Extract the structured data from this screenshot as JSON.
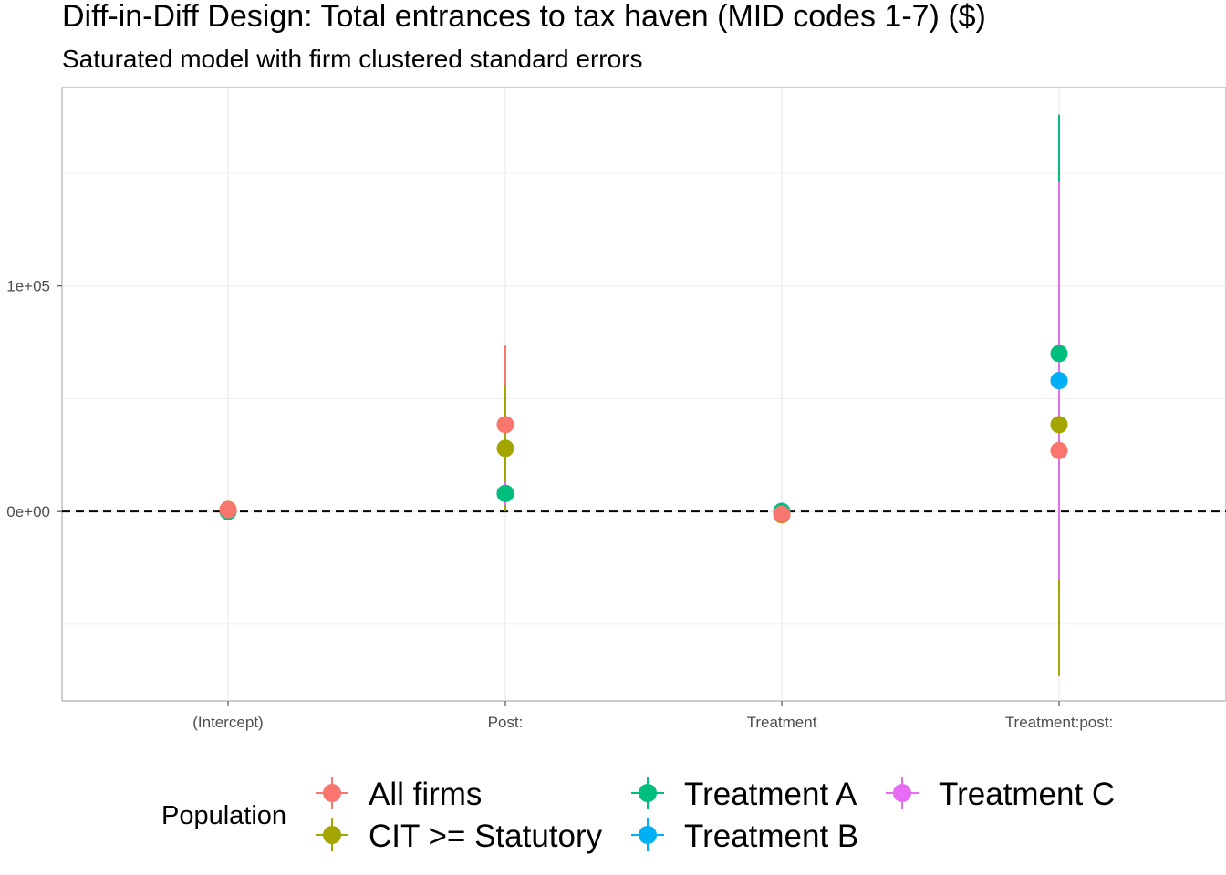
{
  "chart_data": {
    "type": "scatter",
    "title": "Diff-in-Diff Design: Total entrances to tax haven (MID codes 1-7)  ($)",
    "subtitle": "Saturated model with firm clustered standard errors",
    "xlabel": "",
    "ylabel": "",
    "categories": [
      "(Intercept)",
      "Post:",
      "Treatment",
      "Treatment:post:"
    ],
    "y_ticks": [
      0,
      100000
    ],
    "y_tick_labels": [
      "0e+00",
      "1e+05"
    ],
    "ylim": [
      -84000,
      188000
    ],
    "grid": true,
    "reference_line": {
      "y": 0,
      "style": "dashed"
    },
    "legend": {
      "title": "Population",
      "placement": "bottom"
    },
    "series": [
      {
        "name": "All firms",
        "color": "#F8766D",
        "values": [
          800,
          38500,
          -1200,
          27000
        ],
        "ci_low": [
          200,
          1500,
          -2500,
          -5000
        ],
        "ci_high": [
          1400,
          73500,
          100,
          60000
        ]
      },
      {
        "name": "CIT >= Statutory",
        "color": "#A3A500",
        "values": [
          900,
          28000,
          -1500,
          38500
        ],
        "ci_low": [
          300,
          0,
          -2800,
          -73000
        ],
        "ci_high": [
          1500,
          56000,
          -200,
          150000
        ]
      },
      {
        "name": "Treatment A",
        "color": "#00BF7D",
        "values": [
          100,
          8000,
          0,
          70000
        ],
        "ci_low": [
          -300,
          3000,
          -800,
          -30000
        ],
        "ci_high": [
          500,
          13000,
          800,
          176000
        ]
      },
      {
        "name": "Treatment B",
        "color": "#00B0F6",
        "values": [
          100,
          8000,
          0,
          58000
        ],
        "ci_low": [
          -300,
          3000,
          -800,
          -30000
        ],
        "ci_high": [
          500,
          13000,
          800,
          146000
        ]
      },
      {
        "name": "Treatment C",
        "color": "#E76BF3",
        "values": [
          100,
          8000,
          0,
          58000
        ],
        "ci_low": [
          -300,
          3000,
          -800,
          -30000
        ],
        "ci_high": [
          500,
          13000,
          800,
          146000
        ]
      }
    ]
  }
}
